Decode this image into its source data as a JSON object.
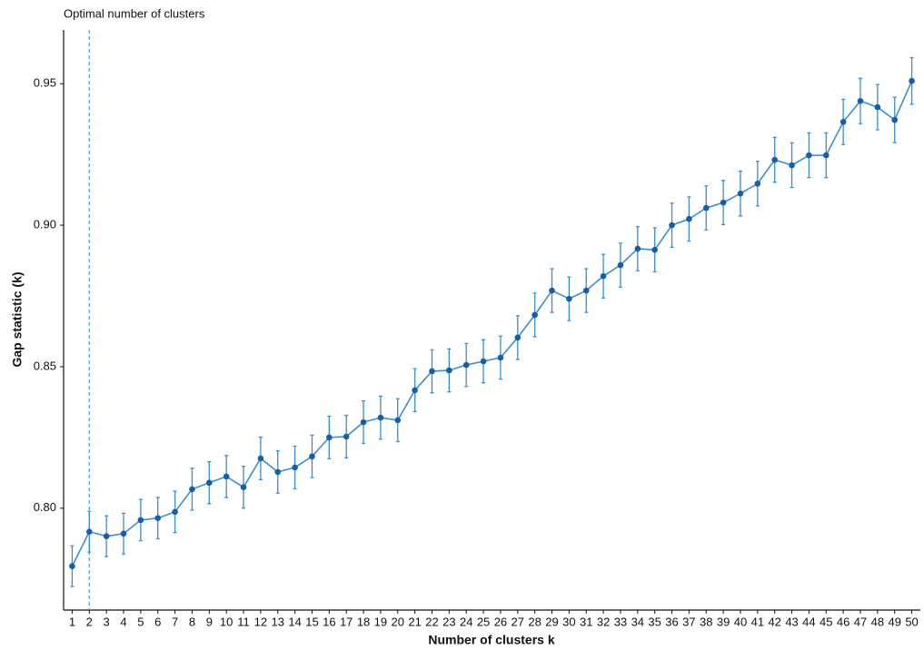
{
  "chart_data": {
    "type": "line",
    "title": "Optimal number of clusters",
    "x_label": "Number of clusters k",
    "y_label": "Gap statistic (k)",
    "categories": [
      1,
      2,
      3,
      4,
      5,
      6,
      7,
      8,
      9,
      10,
      11,
      12,
      13,
      14,
      15,
      16,
      17,
      18,
      19,
      20,
      21,
      22,
      23,
      24,
      25,
      26,
      27,
      28,
      29,
      30,
      31,
      32,
      33,
      34,
      35,
      36,
      37,
      38,
      39,
      40,
      41,
      42,
      43,
      44,
      45,
      46,
      47,
      48,
      49,
      50
    ],
    "values": [
      0.7795,
      0.7917,
      0.7901,
      0.791,
      0.7958,
      0.7965,
      0.7987,
      0.8067,
      0.809,
      0.8112,
      0.8074,
      0.8176,
      0.8128,
      0.8144,
      0.8183,
      0.825,
      0.8253,
      0.8304,
      0.832,
      0.8311,
      0.8417,
      0.8484,
      0.8487,
      0.8506,
      0.8519,
      0.8532,
      0.8603,
      0.8683,
      0.8769,
      0.874,
      0.8769,
      0.882,
      0.8859,
      0.8917,
      0.8913,
      0.9,
      0.9022,
      0.9061,
      0.908,
      0.9112,
      0.9147,
      0.9231,
      0.9212,
      0.9247,
      0.9247,
      0.9365,
      0.9439,
      0.9417,
      0.9372,
      0.951
    ],
    "errors": [
      0.0072,
      0.0072,
      0.0072,
      0.0072,
      0.0073,
      0.0073,
      0.0073,
      0.0074,
      0.0074,
      0.0074,
      0.0074,
      0.0075,
      0.0075,
      0.0075,
      0.0075,
      0.0075,
      0.0075,
      0.0075,
      0.0076,
      0.0076,
      0.0076,
      0.0076,
      0.0076,
      0.0076,
      0.0076,
      0.0076,
      0.0077,
      0.0077,
      0.0077,
      0.0077,
      0.0077,
      0.0077,
      0.0078,
      0.0078,
      0.0078,
      0.0078,
      0.0078,
      0.0078,
      0.0078,
      0.0079,
      0.0079,
      0.0079,
      0.0079,
      0.0079,
      0.0079,
      0.008,
      0.008,
      0.008,
      0.008,
      0.0082
    ],
    "color": "#3b8fd1",
    "point_color": "#1b5ca6",
    "xintercept": 2,
    "vline_color": "#4aa3df",
    "ylim": [
      0.764,
      0.969
    ],
    "yticks": [
      {
        "value": 0.8,
        "label": "0.80"
      },
      {
        "value": 0.85,
        "label": "0.85"
      },
      {
        "value": 0.9,
        "label": "0.90"
      },
      {
        "value": 0.95,
        "label": "0.95"
      }
    ],
    "grid": false
  }
}
